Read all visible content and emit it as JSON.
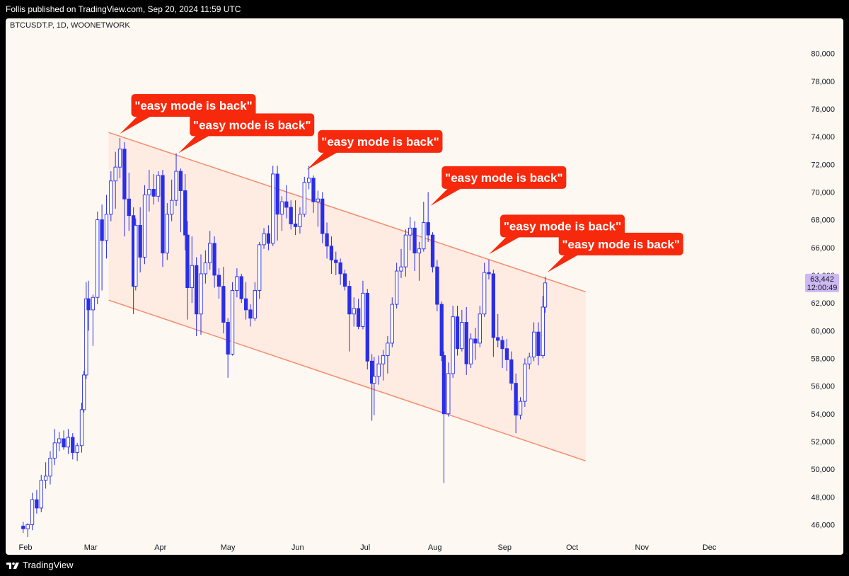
{
  "header": {
    "published": "Follis published on TradingView.com, Sep 20, 2024 11:59 UTC"
  },
  "footer": {
    "brand": "TradingView",
    "brand_icon": "tradingview-logo-icon"
  },
  "colors": {
    "candle": "#2a2ee8",
    "channel_line": "#f58b6e",
    "channel_fill": "#fde7dc",
    "callout": "#f7290c",
    "price_tag": "#cdb8f3",
    "panel_bg": "#fdf8f1"
  },
  "chart_data": {
    "type": "candlestick",
    "symbol": "BTCUSDT.P, 1D, WOONETWORK",
    "y_axis": {
      "range": [
        45000,
        81000
      ],
      "ticks": [
        46000,
        48000,
        50000,
        52000,
        54000,
        56000,
        58000,
        60000,
        62000,
        64000,
        66000,
        68000,
        70000,
        72000,
        74000,
        76000,
        78000,
        80000
      ],
      "tick_labels": [
        "46,000",
        "48,000",
        "50,000",
        "52,000",
        "54,000",
        "56,000",
        "58,000",
        "60,000",
        "62,000",
        "64,000",
        "66,000",
        "68,000",
        "70,000",
        "72,000",
        "74,000",
        "76,000",
        "78,000",
        "80,000"
      ],
      "side": "right",
      "grid": false
    },
    "x_axis": {
      "range": [
        "2024-02-01",
        "2024-12-31"
      ],
      "ticks": [
        "2024-02-01",
        "2024-03-01",
        "2024-04-01",
        "2024-05-01",
        "2024-06-01",
        "2024-07-01",
        "2024-08-01",
        "2024-09-01",
        "2024-10-01",
        "2024-11-01",
        "2024-12-01"
      ],
      "tick_labels": [
        "Feb",
        "Mar",
        "Apr",
        "May",
        "Jun",
        "Jul",
        "Aug",
        "Sep",
        "Oct",
        "Nov",
        "Dec"
      ]
    },
    "last_price": {
      "value": 63442,
      "label": "63,442",
      "countdown": "12:00:49"
    },
    "channel": {
      "upper": {
        "start": [
          "2024-03-09",
          74300
        ],
        "end": [
          "2024-10-07",
          62800
        ]
      },
      "lower": {
        "start": [
          "2024-03-09",
          62200
        ],
        "end": [
          "2024-10-07",
          50600
        ]
      }
    },
    "callouts": [
      {
        "text": "\"easy mode is back\"",
        "date": "2024-03-14",
        "price": 73800
      },
      {
        "text": "\"easy mode is back\"",
        "date": "2024-04-09",
        "price": 72400
      },
      {
        "text": "\"easy mode is back\"",
        "date": "2024-06-05",
        "price": 71200
      },
      {
        "text": "\"easy mode is back\"",
        "date": "2024-07-30",
        "price": 68600
      },
      {
        "text": "\"easy mode is back\"",
        "date": "2024-08-25",
        "price": 65100
      },
      {
        "text": "\"easy mode is back\"",
        "date": "2024-09-20",
        "price": 63800
      }
    ],
    "candles": [
      [
        "2024-01-31",
        45900,
        46200,
        45400,
        45700
      ],
      [
        "2024-02-02",
        45700,
        46100,
        45100,
        46000
      ],
      [
        "2024-02-04",
        46000,
        48300,
        45600,
        47800
      ],
      [
        "2024-02-06",
        47800,
        48500,
        46800,
        47200
      ],
      [
        "2024-02-08",
        47200,
        49600,
        46900,
        49200
      ],
      [
        "2024-02-10",
        49200,
        50500,
        48600,
        49500
      ],
      [
        "2024-02-12",
        49500,
        51300,
        48900,
        50800
      ],
      [
        "2024-02-14",
        50800,
        52900,
        50300,
        51900
      ],
      [
        "2024-02-16",
        51900,
        52700,
        51300,
        52200
      ],
      [
        "2024-02-18",
        52200,
        52800,
        51400,
        51600
      ],
      [
        "2024-02-20",
        51600,
        52900,
        51100,
        52300
      ],
      [
        "2024-02-22",
        52300,
        52600,
        50700,
        51200
      ],
      [
        "2024-02-24",
        51200,
        51900,
        50600,
        51700
      ],
      [
        "2024-02-26",
        51700,
        54800,
        51200,
        54300
      ],
      [
        "2024-02-27",
        54300,
        57100,
        54100,
        56800
      ],
      [
        "2024-02-28",
        56800,
        63500,
        56500,
        62300
      ],
      [
        "2024-02-29",
        62300,
        63600,
        60000,
        61500
      ],
      [
        "2024-03-02",
        61500,
        62600,
        58900,
        62400
      ],
      [
        "2024-03-04",
        62400,
        68600,
        61900,
        68000
      ],
      [
        "2024-03-06",
        68000,
        69100,
        62900,
        66500
      ],
      [
        "2024-03-08",
        66500,
        69800,
        65200,
        68400
      ],
      [
        "2024-03-10",
        68400,
        71500,
        67900,
        70800
      ],
      [
        "2024-03-12",
        70800,
        72900,
        68800,
        71800
      ],
      [
        "2024-03-14",
        71800,
        73900,
        71000,
        73100
      ],
      [
        "2024-03-16",
        73100,
        73600,
        66800,
        69500
      ],
      [
        "2024-03-18",
        69500,
        71400,
        67200,
        68300
      ],
      [
        "2024-03-20",
        68300,
        68900,
        61200,
        63200
      ],
      [
        "2024-03-21",
        63200,
        68100,
        62900,
        67600
      ],
      [
        "2024-03-23",
        67600,
        68900,
        64200,
        65300
      ],
      [
        "2024-03-25",
        65300,
        70500,
        64800,
        69800
      ],
      [
        "2024-03-27",
        69800,
        71600,
        68600,
        70200
      ],
      [
        "2024-03-29",
        70200,
        71300,
        69100,
        69700
      ],
      [
        "2024-03-31",
        69700,
        71500,
        69300,
        71200
      ],
      [
        "2024-04-02",
        71200,
        71600,
        64600,
        65600
      ],
      [
        "2024-04-04",
        65600,
        69200,
        65100,
        68400
      ],
      [
        "2024-04-06",
        68400,
        70900,
        67900,
        69400
      ],
      [
        "2024-04-08",
        69400,
        72800,
        69000,
        71500
      ],
      [
        "2024-04-10",
        71500,
        71700,
        67100,
        70100
      ],
      [
        "2024-04-12",
        70100,
        71300,
        65800,
        66900
      ],
      [
        "2024-04-13",
        66900,
        67900,
        60800,
        63100
      ],
      [
        "2024-04-15",
        63100,
        66800,
        62000,
        64700
      ],
      [
        "2024-04-17",
        64700,
        65300,
        59600,
        61200
      ],
      [
        "2024-04-19",
        61200,
        65500,
        59700,
        64100
      ],
      [
        "2024-04-21",
        64100,
        65800,
        63400,
        64900
      ],
      [
        "2024-04-23",
        64900,
        67200,
        64400,
        66300
      ],
      [
        "2024-04-25",
        66300,
        66800,
        63100,
        64000
      ],
      [
        "2024-04-27",
        64000,
        64500,
        62300,
        63200
      ],
      [
        "2024-04-29",
        63200,
        64600,
        59800,
        60600
      ],
      [
        "2024-05-01",
        60600,
        60900,
        56600,
        58300
      ],
      [
        "2024-05-03",
        58300,
        63500,
        58200,
        62900
      ],
      [
        "2024-05-05",
        62900,
        64500,
        62400,
        63900
      ],
      [
        "2024-05-07",
        63900,
        64100,
        62000,
        62300
      ],
      [
        "2024-05-09",
        62300,
        63500,
        60800,
        61500
      ],
      [
        "2024-05-11",
        61500,
        61900,
        60300,
        60900
      ],
      [
        "2024-05-13",
        60900,
        63500,
        60700,
        62900
      ],
      [
        "2024-05-15",
        62900,
        66400,
        62300,
        66200
      ],
      [
        "2024-05-17",
        66200,
        67400,
        65900,
        67000
      ],
      [
        "2024-05-19",
        67000,
        67600,
        65800,
        66300
      ],
      [
        "2024-05-21",
        66300,
        71900,
        66100,
        71300
      ],
      [
        "2024-05-23",
        71300,
        71900,
        66500,
        68400
      ],
      [
        "2024-05-25",
        68400,
        69700,
        67200,
        69300
      ],
      [
        "2024-05-27",
        69300,
        70500,
        68100,
        68900
      ],
      [
        "2024-05-29",
        68900,
        69400,
        67300,
        67700
      ],
      [
        "2024-05-31",
        67700,
        69400,
        66900,
        67500
      ],
      [
        "2024-06-02",
        67500,
        68900,
        67000,
        68400
      ],
      [
        "2024-06-04",
        68400,
        71100,
        68200,
        70700
      ],
      [
        "2024-06-06",
        70700,
        71900,
        70200,
        71000
      ],
      [
        "2024-06-08",
        71000,
        71200,
        68500,
        69300
      ],
      [
        "2024-06-10",
        69300,
        70100,
        67500,
        69500
      ],
      [
        "2024-06-12",
        69500,
        70000,
        66300,
        67000
      ],
      [
        "2024-06-14",
        67000,
        67800,
        65200,
        66100
      ],
      [
        "2024-06-16",
        66100,
        66800,
        64100,
        65100
      ],
      [
        "2024-06-18",
        65100,
        65700,
        64000,
        64900
      ],
      [
        "2024-06-20",
        64900,
        65200,
        63300,
        64100
      ],
      [
        "2024-06-22",
        64100,
        64400,
        62900,
        63200
      ],
      [
        "2024-06-24",
        63200,
        63600,
        58500,
        61200
      ],
      [
        "2024-06-26",
        61200,
        62400,
        60300,
        61600
      ],
      [
        "2024-06-28",
        61600,
        62300,
        60100,
        60300
      ],
      [
        "2024-06-30",
        60300,
        63600,
        60100,
        62700
      ],
      [
        "2024-07-02",
        62700,
        63000,
        57200,
        57800
      ],
      [
        "2024-07-04",
        57800,
        58300,
        53500,
        56200
      ],
      [
        "2024-07-05",
        56200,
        58100,
        53900,
        56700
      ],
      [
        "2024-07-07",
        56700,
        58200,
        56100,
        57600
      ],
      [
        "2024-07-09",
        57600,
        58600,
        56400,
        58200
      ],
      [
        "2024-07-11",
        58200,
        59600,
        56900,
        59100
      ],
      [
        "2024-07-13",
        59100,
        62400,
        58800,
        61900
      ],
      [
        "2024-07-15",
        61900,
        64900,
        61600,
        64300
      ],
      [
        "2024-07-17",
        64300,
        65900,
        63800,
        64600
      ],
      [
        "2024-07-19",
        64600,
        67300,
        63900,
        66900
      ],
      [
        "2024-07-21",
        66900,
        68200,
        65800,
        67400
      ],
      [
        "2024-07-23",
        67400,
        67900,
        64300,
        65600
      ],
      [
        "2024-07-25",
        65600,
        66400,
        63600,
        65900
      ],
      [
        "2024-07-27",
        65900,
        69300,
        65700,
        67800
      ],
      [
        "2024-07-29",
        67800,
        70000,
        66400,
        66900
      ],
      [
        "2024-07-31",
        66900,
        67100,
        64200,
        64600
      ],
      [
        "2024-08-02",
        64600,
        65100,
        61400,
        61900
      ],
      [
        "2024-08-04",
        61900,
        62100,
        57800,
        58200
      ],
      [
        "2024-08-05",
        58200,
        58500,
        49000,
        54000
      ],
      [
        "2024-08-07",
        54000,
        57700,
        53800,
        56900
      ],
      [
        "2024-08-09",
        56900,
        61800,
        56600,
        61000
      ],
      [
        "2024-08-11",
        61000,
        61800,
        58200,
        58700
      ],
      [
        "2024-08-13",
        58700,
        61500,
        58500,
        60600
      ],
      [
        "2024-08-15",
        60600,
        61700,
        56800,
        57600
      ],
      [
        "2024-08-17",
        57600,
        59800,
        57300,
        59400
      ],
      [
        "2024-08-19",
        59400,
        60200,
        57900,
        59100
      ],
      [
        "2024-08-21",
        59100,
        61800,
        58800,
        61200
      ],
      [
        "2024-08-23",
        61200,
        64900,
        61000,
        64200
      ],
      [
        "2024-08-25",
        64200,
        65100,
        63700,
        64100
      ],
      [
        "2024-08-27",
        64100,
        64400,
        58100,
        59500
      ],
      [
        "2024-08-29",
        59500,
        61200,
        58800,
        59300
      ],
      [
        "2024-08-31",
        59300,
        59600,
        57300,
        58700
      ],
      [
        "2024-09-02",
        58700,
        59400,
        57100,
        57900
      ],
      [
        "2024-09-04",
        57900,
        58500,
        55700,
        56200
      ],
      [
        "2024-09-06",
        56200,
        56900,
        52600,
        53900
      ],
      [
        "2024-09-08",
        53900,
        55200,
        53600,
        54900
      ],
      [
        "2024-09-10",
        54900,
        58000,
        54500,
        57600
      ],
      [
        "2024-09-12",
        57600,
        58400,
        57200,
        58100
      ],
      [
        "2024-09-14",
        58100,
        60600,
        57800,
        59900
      ],
      [
        "2024-09-16",
        59900,
        60600,
        57500,
        58200
      ],
      [
        "2024-09-18",
        58200,
        62500,
        58000,
        61700
      ],
      [
        "2024-09-19",
        61700,
        63900,
        61300,
        63442
      ]
    ]
  }
}
